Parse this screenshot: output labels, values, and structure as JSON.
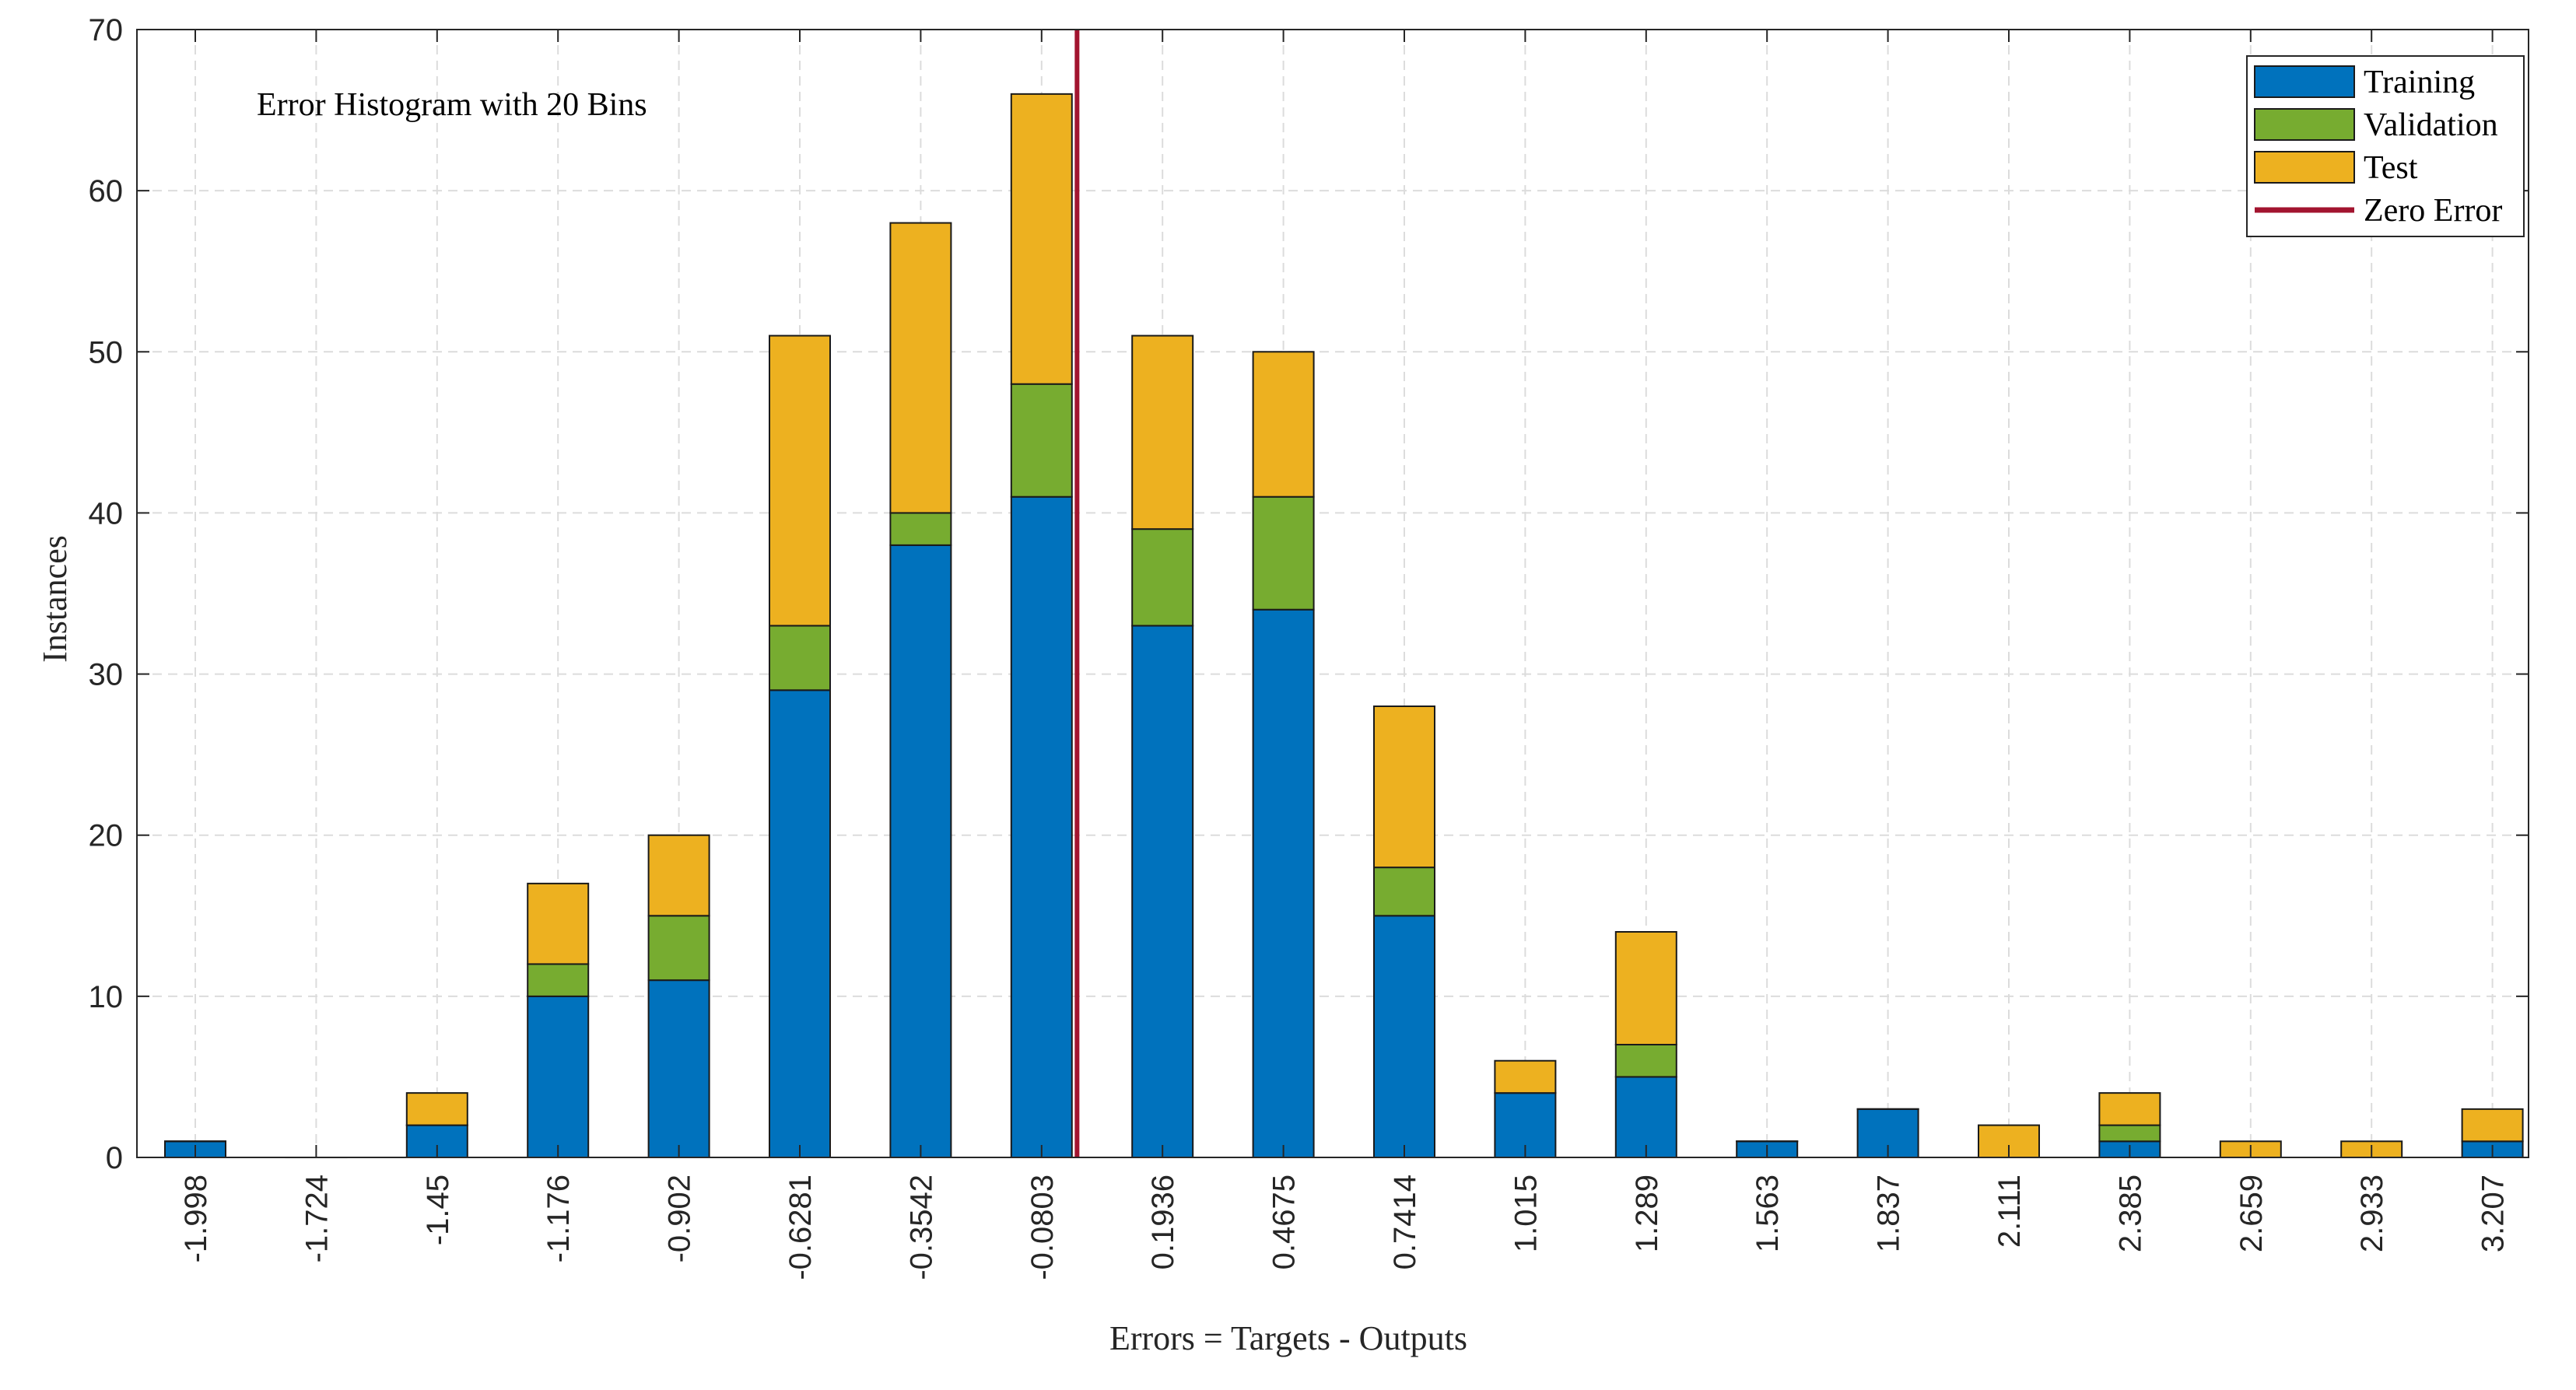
{
  "chart_data": {
    "type": "bar",
    "stacked": true,
    "title": "Error Histogram with 20 Bins",
    "xlabel": "Errors = Targets - Outputs",
    "ylabel": "Instances",
    "ylim": [
      0,
      70
    ],
    "yticks": [
      0,
      10,
      20,
      30,
      40,
      50,
      60,
      70
    ],
    "grid": true,
    "legend_position": "top-right",
    "categories": [
      "-1.998",
      "-1.724",
      "-1.45",
      "-1.176",
      "-0.902",
      "-0.6281",
      "-0.3542",
      "-0.0803",
      "0.1936",
      "0.4675",
      "0.7414",
      "1.015",
      "1.289",
      "1.563",
      "1.837",
      "2.111",
      "2.385",
      "2.659",
      "2.933",
      "3.207"
    ],
    "series": [
      {
        "name": "Training",
        "color": "#0072BD",
        "values": [
          1,
          0,
          2,
          10,
          11,
          29,
          38,
          41,
          33,
          34,
          15,
          4,
          5,
          1,
          3,
          0,
          1,
          0,
          0,
          1
        ]
      },
      {
        "name": "Validation",
        "color": "#77AC30",
        "values": [
          0,
          0,
          0,
          2,
          4,
          4,
          2,
          7,
          6,
          7,
          3,
          0,
          2,
          0,
          0,
          0,
          1,
          0,
          0,
          0
        ]
      },
      {
        "name": "Test",
        "color": "#EDB120",
        "values": [
          0,
          0,
          2,
          5,
          5,
          18,
          18,
          18,
          12,
          9,
          10,
          2,
          7,
          0,
          0,
          2,
          2,
          1,
          1,
          2
        ]
      }
    ],
    "reference_line": {
      "name": "Zero Error",
      "x": 0,
      "color": "#A2142F"
    }
  }
}
